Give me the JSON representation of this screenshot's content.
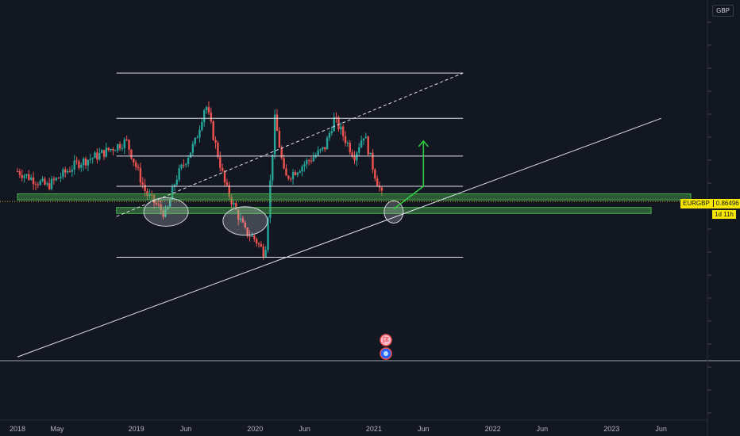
{
  "axis": {
    "currency": "GBP",
    "x_ticks": [
      "2018",
      "May",
      "2019",
      "Jun",
      "2020",
      "Jun",
      "2021",
      "Jun",
      "2022",
      "Jun",
      "2023",
      "Jun"
    ]
  },
  "price_label": {
    "symbol": "EURGBP",
    "price": "0.86496",
    "countdown": "1d 11h"
  },
  "colors": {
    "background": "#131722",
    "up_candle": "#26a69a",
    "down_candle": "#ef5350",
    "zone": "#4caf50",
    "arrow": "#2ecc40",
    "lines": "#e0e3eb",
    "price_tag": "#f7e600"
  },
  "event_icons": [
    "flag-event-icon",
    "earnings-event-icon"
  ],
  "chart_data": {
    "type": "candlestick",
    "symbol": "EURGBP",
    "x_range": [
      "2018-01",
      "2023-09"
    ],
    "y_range": [
      0.77,
      0.98
    ],
    "last_price": 0.86496,
    "waypoints": [
      [
        "2018-01",
        0.885
      ],
      [
        "2018-04",
        0.875
      ],
      [
        "2018-07",
        0.89
      ],
      [
        "2018-09",
        0.895
      ],
      [
        "2018-12",
        0.905
      ],
      [
        "2019-02",
        0.87
      ],
      [
        "2019-04",
        0.856
      ],
      [
        "2019-05",
        0.88
      ],
      [
        "2019-07",
        0.905
      ],
      [
        "2019-08",
        0.93
      ],
      [
        "2019-10",
        0.875
      ],
      [
        "2019-12",
        0.845
      ],
      [
        "2020-01",
        0.84
      ],
      [
        "2020-02",
        0.83
      ],
      [
        "2020-03",
        0.92
      ],
      [
        "2020-04",
        0.88
      ],
      [
        "2020-05",
        0.885
      ],
      [
        "2020-08",
        0.9
      ],
      [
        "2020-09",
        0.92
      ],
      [
        "2020-11",
        0.895
      ],
      [
        "2020-12",
        0.91
      ],
      [
        "2021-01",
        0.885
      ],
      [
        "2021-02",
        0.865
      ]
    ],
    "annotations": [
      {
        "type": "horizontal_levels",
        "levels": [
          0.95,
          0.92,
          0.895,
          0.875,
          0.828
        ],
        "from": "2018-11",
        "to": "2021-10"
      },
      {
        "type": "support_zone",
        "from": "2018-11",
        "to": "2023-05",
        "range": [
          0.857,
          0.861
        ]
      },
      {
        "type": "resistance_zone",
        "from": "2018-01",
        "to": "2023-09",
        "range": [
          0.866,
          0.87
        ]
      },
      {
        "type": "trendline",
        "style": "solid",
        "start": [
          "2018-01",
          0.762
        ],
        "end": [
          "2023-06",
          0.92
        ]
      },
      {
        "type": "trendline",
        "style": "dashed",
        "start": [
          "2018-11",
          0.855
        ],
        "end": [
          "2021-10",
          0.95
        ]
      },
      {
        "type": "ellipse",
        "center": [
          "2019-04",
          0.858
        ]
      },
      {
        "type": "ellipse",
        "center": [
          "2019-12",
          0.852
        ]
      },
      {
        "type": "ellipse",
        "center": [
          "2021-03",
          0.858
        ]
      },
      {
        "type": "arrow",
        "from": [
          "2021-03",
          0.86
        ],
        "via": [
          "2021-06",
          0.875
        ],
        "to": [
          "2021-06",
          0.905
        ]
      }
    ]
  }
}
